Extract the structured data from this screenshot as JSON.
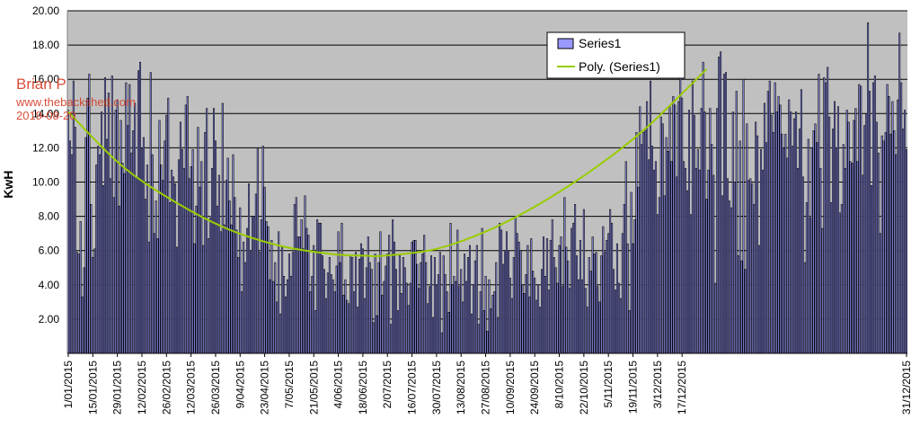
{
  "chart_data": {
    "type": "bar",
    "ylabel": "KwH",
    "ylim": [
      0,
      20
    ],
    "ytick_labels": [
      "20.00",
      "18.00",
      "16.00",
      "14.00",
      "12.00",
      "10.00",
      "8.00",
      "6.00",
      "4.00",
      "2.00"
    ],
    "xtick_labels": [
      "1/01/2015",
      "15/01/2015",
      "29/01/2015",
      "12/02/2015",
      "26/02/2015",
      "12/03/2015",
      "26/03/2015",
      "9/04/2015",
      "23/04/2015",
      "7/05/2015",
      "21/05/2015",
      "4/06/2015",
      "18/06/2015",
      "2/07/2015",
      "16/07/2015",
      "30/07/2015",
      "13/08/2015",
      "27/08/2015",
      "10/09/2015",
      "24/09/2015",
      "8/10/2015",
      "22/10/2015",
      "5/11/2015",
      "19/11/2015",
      "3/12/2015",
      "17/12/2015",
      "31/12/2015"
    ],
    "grid": true,
    "legend_position": "top-right",
    "series": [
      {
        "name": "Series1",
        "color": "#9999ff",
        "daily_values_kwh": [
          14.2,
          12.4,
          11.6,
          15.9,
          13.2,
          5.9,
          5.8,
          7.7,
          3.3,
          5.0,
          12.6,
          14.9,
          16.3,
          8.7,
          5.6,
          6.1,
          11.0,
          12.1,
          11.6,
          14.1,
          9.8,
          16.1,
          12.5,
          15.2,
          10.2,
          16.2,
          9.1,
          14.2,
          14.8,
          8.6,
          13.6,
          11.1,
          10.5,
          15.8,
          13.3,
          15.7,
          11.7,
          13.0,
          14.6,
          10.3,
          16.5,
          17.0,
          12.0,
          12.6,
          9.0,
          11.0,
          6.5,
          16.4,
          11.6,
          7.0,
          8.9,
          6.7,
          13.6,
          11.0,
          10.1,
          12.4,
          13.9,
          14.9,
          8.8,
          10.7,
          10.3,
          9.9,
          6.2,
          11.3,
          13.5,
          11.9,
          10.8,
          14.5,
          15.0,
          10.2,
          10.9,
          11.9,
          6.4,
          8.6,
          13.2,
          9.7,
          11.2,
          6.3,
          12.9,
          14.3,
          6.7,
          7.9,
          10.8,
          14.3,
          12.4,
          8.6,
          10.4,
          7.1,
          14.6,
          7.5,
          10.1,
          11.4,
          8.9,
          7.5,
          11.6,
          9.1,
          7.2,
          5.6,
          8.5,
          3.6,
          6.5,
          5.3,
          7.3,
          9.9,
          6.0,
          8.0,
          8.0,
          9.3,
          12.0,
          5.9,
          7.8,
          12.1,
          9.7,
          7.7,
          7.4,
          4.3,
          6.6,
          4.2,
          5.3,
          3.0,
          7.1,
          2.3,
          6.2,
          4.5,
          3.3,
          4.3,
          5.8,
          4.5,
          5.9,
          8.7,
          9.1,
          6.8,
          6.8,
          7.8,
          6.1,
          9.2,
          7.3,
          6.9,
          3.6,
          4.5,
          6.3,
          2.5,
          7.8,
          7.6,
          7.6,
          5.7,
          4.9,
          3.2,
          4.7,
          5.6,
          4.6,
          4.3,
          3.6,
          5.1,
          7.1,
          5.3,
          7.6,
          3.4,
          4.3,
          3.1,
          2.9,
          5.7,
          5.6,
          3.6,
          5.9,
          2.7,
          5.5,
          6.4,
          6.1,
          3.2,
          5.0,
          6.8,
          5.3,
          4.9,
          1.8,
          5.8,
          2.2,
          5.3,
          7.1,
          3.4,
          4.2,
          5.1,
          5.8,
          6.9,
          1.7,
          7.8,
          6.5,
          4.9,
          2.5,
          5.7,
          3.5,
          5.6,
          5.0,
          4.1,
          2.8,
          4.1,
          6.5,
          6.6,
          6.6,
          5.2,
          3.8,
          5.3,
          5.8,
          6.9,
          5.3,
          2.9,
          3.9,
          5.7,
          2.1,
          5.6,
          4.0,
          4.6,
          5.9,
          1.2,
          5.7,
          4.6,
          3.6,
          2.4,
          7.6,
          4.0,
          4.5,
          4.2,
          7.2,
          3.9,
          4.9,
          3.0,
          5.8,
          4.2,
          5.6,
          6.3,
          2.3,
          4.0,
          5.4,
          6.3,
          1.7,
          3.6,
          7.3,
          2.5,
          4.5,
          1.3,
          4.3,
          2.6,
          3.4,
          3.6,
          5.3,
          2.1,
          7.6,
          7.2,
          5.2,
          6.0,
          7.1,
          6.0,
          4.4,
          3.2,
          5.6,
          7.9,
          7.0,
          6.5,
          6.0,
          4.0,
          3.5,
          4.6,
          6.3,
          3.3,
          6.7,
          4.8,
          4.4,
          3.1,
          4.0,
          2.7,
          4.9,
          6.8,
          4.5,
          6.7,
          3.7,
          6.6,
          7.8,
          5.6,
          5.0,
          4.1,
          6.3,
          6.8,
          3.9,
          9.1,
          6.2,
          5.4,
          3.8,
          7.3,
          7.6,
          8.7,
          5.7,
          4.3,
          6.6,
          4.3,
          8.4,
          3.8,
          2.7,
          5.6,
          4.8,
          6.8,
          5.8,
          5.9,
          3.9,
          3.0,
          5.7,
          7.4,
          5.9,
          6.6,
          7.0,
          8.4,
          7.6,
          4.9,
          3.7,
          6.4,
          4.1,
          3.2,
          7.0,
          8.7,
          11.2,
          6.4,
          2.5,
          9.4,
          6.4,
          7.8,
          12.9,
          9.7,
          14.4,
          12.2,
          12.9,
          13.0,
          14.7,
          11.3,
          15.9,
          12.1,
          10.7,
          11.2,
          8.1,
          9.1,
          13.8,
          13.4,
          9.2,
          12.6,
          11.8,
          14.4,
          11.2,
          15.0,
          14.5,
          10.3,
          14.7,
          16.2,
          14.9,
          11.2,
          10.8,
          9.5,
          14.2,
          8.1,
          15.9,
          13.9,
          10.8,
          11.9,
          10.7,
          14.3,
          17.0,
          14.1,
          9.0,
          10.7,
          14.3,
          12.2,
          10.4,
          4.1,
          14.3,
          17.3,
          17.6,
          9.2,
          16.3,
          16.4,
          10.2,
          8.9,
          8.5,
          14.1,
          10.0,
          15.3,
          5.7,
          12.4,
          5.4,
          16.0,
          4.9,
          13.4,
          10.1,
          10.2,
          9.9,
          8.7,
          13.5,
          12.7,
          6.3,
          11.9,
          10.7,
          14.6,
          12.3,
          15.3,
          15.9,
          13.9,
          12.9,
          15.8,
          14.1,
          15.0,
          14.5,
          12.8,
          12.0,
          12.8,
          11.4,
          14.8,
          14.1,
          12.1,
          13.7,
          14.1,
          10.8,
          13.1,
          15.4,
          10.3,
          5.3,
          8.8,
          12.5,
          7.9,
          12.0,
          13.0,
          13.4,
          12.3,
          16.3,
          10.8,
          7.3,
          16.1,
          15.8,
          16.7,
          13.8,
          8.8,
          13.1,
          14.7,
          12.0,
          14.4,
          8.2,
          8.7,
          12.2,
          10.8,
          14.2,
          13.5,
          11.2,
          11.1,
          13.6,
          14.3,
          11.2,
          15.7,
          15.6,
          10.4,
          13.3,
          14.0,
          19.3,
          15.3,
          9.8,
          15.8,
          16.2,
          13.5,
          11.7,
          7.0,
          12.7,
          12.4,
          12.9,
          15.7,
          15.0,
          12.8,
          14.7,
          13.0,
          11.6,
          14.8,
          18.7,
          15.8,
          13.1,
          14.2,
          11.9
        ]
      },
      {
        "name": "Poly. (Series1)",
        "type": "line",
        "color": "#99cc00",
        "trend_kwh_at": {
          "x_days": [
            0,
            30,
            60,
            90,
            120,
            150,
            170,
            180,
            210,
            240,
            270,
            300,
            330,
            364
          ],
          "y": [
            14.1,
            11.0,
            8.9,
            7.3,
            6.3,
            5.8,
            5.7,
            5.7,
            6.1,
            7.2,
            8.8,
            10.8,
            13.2,
            16.6
          ]
        }
      }
    ]
  },
  "legend": {
    "series1": "Series1",
    "poly": "Poly. (Series1)"
  },
  "watermark": {
    "name": "Brian P",
    "site": "www.thebackshed.com",
    "date": "2019-08-20"
  }
}
